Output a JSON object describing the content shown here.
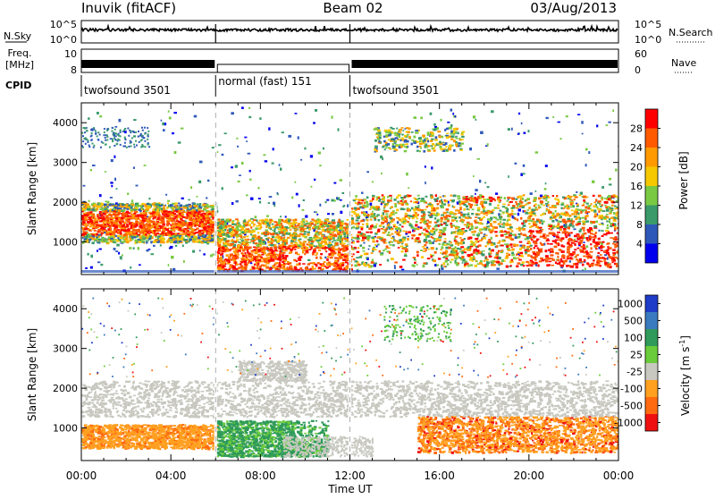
{
  "header": {
    "station": "Inuvik (fitACF)",
    "beam": "Beam 02",
    "date": "03/Aug/2013"
  },
  "noise_panel": {
    "left_label": "N.Sky",
    "right_label": "N.Search",
    "left_ticks": [
      "10^5",
      "10^0"
    ],
    "right_ticks": [
      "10^5",
      "10^0"
    ]
  },
  "freq_panel": {
    "left_label_line1": "Freq.",
    "left_label_line2": "[MHz]",
    "left_ticks": [
      "10",
      "8"
    ],
    "right_label": "Nave",
    "right_ticks": [
      "60",
      "0"
    ]
  },
  "cpid": {
    "label": "CPID",
    "segments": [
      {
        "name": "twofsound 3501",
        "start_hour": 0,
        "end_hour": 6
      },
      {
        "name": "normal (fast) 151",
        "start_hour": 6,
        "end_hour": 12
      },
      {
        "name": "twofsound 3501",
        "start_hour": 12,
        "end_hour": 24
      }
    ]
  },
  "x_axis": {
    "title": "Time UT",
    "ticks": [
      "00:00",
      "04:00",
      "08:00",
      "12:00",
      "16:00",
      "20:00",
      "00:00"
    ]
  },
  "chart_data": [
    {
      "type": "heatmap",
      "parameter": "Power",
      "ylabel": "Slant Range [km]",
      "xlabel": "",
      "xlim_hours": [
        0,
        24
      ],
      "ylim": [
        180,
        4500
      ],
      "yticks": [
        "1000",
        "2000",
        "3000",
        "4000"
      ],
      "colorbar": {
        "label": "Power [dB]",
        "ticks": [
          "28",
          "24",
          "20",
          "16",
          "12",
          "8",
          "4"
        ],
        "colors": [
          "#ff0000",
          "#ff5a00",
          "#ff9a00",
          "#f5c800",
          "#7ac943",
          "#3a9a6a",
          "#2e58b8",
          "#0000ee"
        ]
      },
      "regions": [
        {
          "t0": 0,
          "t1": 6,
          "r0": 1000,
          "r1": 2000,
          "level": "high"
        },
        {
          "t0": 6,
          "t1": 12,
          "r0": 300,
          "r1": 1500,
          "level": "high"
        },
        {
          "t0": 12,
          "t1": 24,
          "r0": 400,
          "r1": 2200,
          "level": "high"
        },
        {
          "t0": 13,
          "t1": 17,
          "r0": 3300,
          "r1": 4000,
          "level": "medium"
        }
      ]
    },
    {
      "type": "heatmap",
      "parameter": "Velocity",
      "ylabel": "Slant Range [km]",
      "xlabel": "Time UT",
      "xlim_hours": [
        0,
        24
      ],
      "ylim": [
        180,
        4500
      ],
      "yticks": [
        "1000",
        "2000",
        "3000",
        "4000"
      ],
      "colorbar": {
        "label": "Velocity [m s^-1]",
        "ticks": [
          "1000",
          "500",
          "100",
          "25",
          "-25",
          "-100",
          "-500",
          "-1000"
        ],
        "colors": [
          "#1e3cc8",
          "#3a7abf",
          "#2f9a5a",
          "#6acc3a",
          "#c8c8c0",
          "#ffa020",
          "#ff6a10",
          "#ee1010"
        ]
      },
      "regions": [
        {
          "t0": 0,
          "t1": 24,
          "r0": 1300,
          "r1": 2200,
          "level": "ground scatter"
        },
        {
          "t0": 0,
          "t1": 6,
          "r0": 500,
          "r1": 1100,
          "level": "negative"
        },
        {
          "t0": 6,
          "t1": 11,
          "r0": 300,
          "r1": 1200,
          "level": "positive"
        },
        {
          "t0": 16,
          "t1": 24,
          "r0": 400,
          "r1": 1300,
          "level": "negative"
        }
      ]
    }
  ]
}
